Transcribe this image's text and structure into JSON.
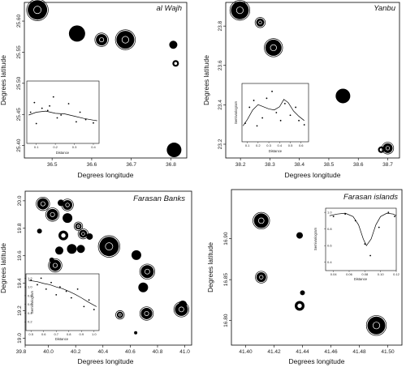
{
  "chart_data": [
    {
      "type": "scatter",
      "title": "al Wajh",
      "xlabel": "Degrees longitude",
      "ylabel": "Degrees latitude",
      "xlim": [
        36.43,
        36.84
      ],
      "ylim": [
        25.38,
        25.63
      ],
      "xticks": [
        "36.5",
        "36.6",
        "36.7",
        "36.8"
      ],
      "yticks": [
        "25.40",
        "25.45",
        "25.50",
        "25.55",
        "25.60"
      ],
      "xtick_values": [
        36.5,
        36.6,
        36.7,
        36.8
      ],
      "ytick_values": [
        25.4,
        25.45,
        25.5,
        25.55,
        25.6
      ],
      "points": [
        {
          "x": 36.463,
          "y": 25.618,
          "size": 12,
          "style": "filled-ring"
        },
        {
          "x": 36.563,
          "y": 25.58,
          "size": 10,
          "style": "filled"
        },
        {
          "x": 36.625,
          "y": 25.57,
          "size": 7,
          "style": "filled-ring"
        },
        {
          "x": 36.685,
          "y": 25.57,
          "size": 11,
          "style": "filled-ring"
        },
        {
          "x": 36.806,
          "y": 25.562,
          "size": 5,
          "style": "filled"
        },
        {
          "x": 36.812,
          "y": 25.532,
          "size": 4,
          "style": "ring"
        },
        {
          "x": 36.808,
          "y": 25.393,
          "size": 9,
          "style": "filled"
        }
      ],
      "inset": {
        "xlabel": "Distance",
        "ylabel": "",
        "xlim": [
          0.05,
          0.43
        ],
        "ylim": [
          0,
          1.1
        ],
        "xticks": [
          "0.1",
          "0.2",
          "0.3",
          "0.4"
        ],
        "xtick_values": [
          0.1,
          0.2,
          0.3,
          0.4
        ],
        "points": [
          [
            0.07,
            0.55
          ],
          [
            0.09,
            0.72
          ],
          [
            0.1,
            0.35
          ],
          [
            0.13,
            0.62
          ],
          [
            0.16,
            0.58
          ],
          [
            0.17,
            0.66
          ],
          [
            0.19,
            0.82
          ],
          [
            0.21,
            0.45
          ],
          [
            0.23,
            0.5
          ],
          [
            0.27,
            0.7
          ],
          [
            0.31,
            0.38
          ],
          [
            0.33,
            0.55
          ],
          [
            0.36,
            0.42
          ],
          [
            0.4,
            0.36
          ]
        ],
        "line": [
          [
            0.06,
            0.5
          ],
          [
            0.1,
            0.55
          ],
          [
            0.15,
            0.57
          ],
          [
            0.2,
            0.53
          ],
          [
            0.25,
            0.52
          ],
          [
            0.3,
            0.48
          ],
          [
            0.35,
            0.44
          ],
          [
            0.4,
            0.41
          ],
          [
            0.42,
            0.4
          ]
        ]
      }
    },
    {
      "type": "scatter",
      "title": "Yanbu",
      "xlabel": "Degrees longitude",
      "ylabel": "Degrees latitude",
      "xlim": [
        38.15,
        38.74
      ],
      "ylim": [
        23.13,
        23.92
      ],
      "xticks": [
        "38.2",
        "38.3",
        "38.4",
        "38.5",
        "38.6",
        "38.7"
      ],
      "yticks": [
        "23.2",
        "23.4",
        "23.6",
        "23.8"
      ],
      "xtick_values": [
        38.2,
        38.3,
        38.4,
        38.5,
        38.6,
        38.7
      ],
      "ytick_values": [
        23.2,
        23.4,
        23.6,
        23.8
      ],
      "points": [
        {
          "x": 38.198,
          "y": 23.88,
          "size": 11,
          "style": "filled-ring"
        },
        {
          "x": 38.267,
          "y": 23.818,
          "size": 5,
          "style": "filled-ring"
        },
        {
          "x": 38.312,
          "y": 23.69,
          "size": 10,
          "style": "filled-ring"
        },
        {
          "x": 38.548,
          "y": 23.445,
          "size": 9,
          "style": "filled"
        },
        {
          "x": 38.678,
          "y": 23.172,
          "size": 4,
          "style": "ring"
        },
        {
          "x": 38.7,
          "y": 23.18,
          "size": 6,
          "style": "filled-ring"
        }
      ],
      "inset": {
        "xlabel": "Distance",
        "ylabel": "Semivariogram",
        "xlim": [
          0.05,
          0.67
        ],
        "ylim": [
          0,
          1.1
        ],
        "xticks": [
          "0.1",
          "0.2",
          "0.3",
          "0.4",
          "0.5",
          "0.6"
        ],
        "xtick_values": [
          0.1,
          0.2,
          0.3,
          0.4,
          0.5,
          0.6
        ],
        "points": [
          [
            0.08,
            0.35
          ],
          [
            0.12,
            0.65
          ],
          [
            0.16,
            0.78
          ],
          [
            0.19,
            0.3
          ],
          [
            0.24,
            0.45
          ],
          [
            0.28,
            0.82
          ],
          [
            0.33,
            0.95
          ],
          [
            0.37,
            0.55
          ],
          [
            0.41,
            0.4
          ],
          [
            0.45,
            0.72
          ],
          [
            0.5,
            0.5
          ],
          [
            0.55,
            0.65
          ],
          [
            0.58,
            0.4
          ],
          [
            0.63,
            0.32
          ]
        ],
        "line": [
          [
            0.06,
            0.3
          ],
          [
            0.1,
            0.42
          ],
          [
            0.15,
            0.6
          ],
          [
            0.2,
            0.7
          ],
          [
            0.25,
            0.66
          ],
          [
            0.3,
            0.62
          ],
          [
            0.35,
            0.6
          ],
          [
            0.4,
            0.66
          ],
          [
            0.44,
            0.8
          ],
          [
            0.48,
            0.74
          ],
          [
            0.53,
            0.58
          ],
          [
            0.58,
            0.48
          ],
          [
            0.63,
            0.4
          ]
        ]
      }
    },
    {
      "type": "scatter",
      "title": "Farasan Banks",
      "xlabel": "Degrees longitude",
      "ylabel": "Degrees latitude",
      "xlim": [
        39.83,
        41.05
      ],
      "ylim": [
        18.95,
        20.07
      ],
      "xticks": [
        "39.8",
        "40.0",
        "40.2",
        "40.4",
        "40.6",
        "40.8",
        "41.0"
      ],
      "yticks": [
        "19.0",
        "19.2",
        "19.4",
        "19.6",
        "19.8",
        "20.0"
      ],
      "xtick_values": [
        39.8,
        40.0,
        40.2,
        40.4,
        40.6,
        40.8,
        41.0
      ],
      "ytick_values": [
        19.0,
        19.2,
        19.4,
        19.6,
        19.8,
        20.0
      ],
      "points": [
        {
          "x": 39.96,
          "y": 19.978,
          "size": 7,
          "style": "filled-ring"
        },
        {
          "x": 40.092,
          "y": 19.985,
          "size": 4,
          "style": "filled"
        },
        {
          "x": 40.14,
          "y": 19.97,
          "size": 6,
          "style": "filled-ring"
        },
        {
          "x": 40.03,
          "y": 19.9,
          "size": 7,
          "style": "filled-ring"
        },
        {
          "x": 40.14,
          "y": 19.875,
          "size": 6,
          "style": "filled"
        },
        {
          "x": 40.22,
          "y": 19.815,
          "size": 4,
          "style": "filled-ring"
        },
        {
          "x": 40.255,
          "y": 19.76,
          "size": 5,
          "style": "filled-ring"
        },
        {
          "x": 39.935,
          "y": 19.78,
          "size": 3,
          "style": "filled"
        },
        {
          "x": 40.11,
          "y": 19.748,
          "size": 6,
          "style": "ring"
        },
        {
          "x": 40.302,
          "y": 19.74,
          "size": 4,
          "style": "filled"
        },
        {
          "x": 40.08,
          "y": 19.638,
          "size": 5,
          "style": "filled"
        },
        {
          "x": 40.172,
          "y": 19.65,
          "size": 6,
          "style": "filled"
        },
        {
          "x": 40.238,
          "y": 19.65,
          "size": 5,
          "style": "filled"
        },
        {
          "x": 40.445,
          "y": 19.668,
          "size": 12,
          "style": "filled-ring"
        },
        {
          "x": 40.025,
          "y": 19.57,
          "size": 3,
          "style": "filled"
        },
        {
          "x": 40.05,
          "y": 19.53,
          "size": 7,
          "style": "filled-ring"
        },
        {
          "x": 40.645,
          "y": 19.605,
          "size": 6,
          "style": "filled"
        },
        {
          "x": 40.725,
          "y": 19.485,
          "size": 8,
          "style": "filled-ring"
        },
        {
          "x": 40.695,
          "y": 19.37,
          "size": 6,
          "style": "filled"
        },
        {
          "x": 40.985,
          "y": 19.245,
          "size": 5,
          "style": "filled"
        },
        {
          "x": 40.975,
          "y": 19.21,
          "size": 8,
          "style": "filled-ring"
        },
        {
          "x": 40.525,
          "y": 19.17,
          "size": 4,
          "style": "filled-ring"
        },
        {
          "x": 40.72,
          "y": 19.18,
          "size": 7,
          "style": "filled-ring"
        },
        {
          "x": 40.64,
          "y": 19.04,
          "size": 2,
          "style": "filled"
        }
      ],
      "inset": {
        "xlabel": "Distance",
        "ylabel": "Semivariogram",
        "xlim": [
          0.46,
          1.04
        ],
        "ylim": [
          0,
          1.3
        ],
        "xticks": [
          "0.5",
          "0.6",
          "0.7",
          "0.8",
          "0.9",
          "1.0"
        ],
        "xtick_values": [
          0.5,
          0.6,
          0.7,
          0.8,
          0.9,
          1.0
        ],
        "yticks": [
          "1.2",
          "1.0",
          "0.8",
          "0.6",
          "0.4",
          "0.2"
        ],
        "ytick_values": [
          1.2,
          1.0,
          0.8,
          0.6,
          0.4,
          0.2
        ],
        "points": [
          [
            0.5,
            1.15
          ],
          [
            0.55,
            1.05
          ],
          [
            0.58,
            1.2
          ],
          [
            0.62,
            0.95
          ],
          [
            0.66,
            1.1
          ],
          [
            0.7,
            0.82
          ],
          [
            0.73,
            1.0
          ],
          [
            0.78,
            0.9
          ],
          [
            0.82,
            0.75
          ],
          [
            0.87,
            0.95
          ],
          [
            0.92,
            0.55
          ],
          [
            0.96,
            0.7
          ],
          [
            1.0,
            0.48
          ]
        ],
        "line": [
          [
            0.48,
            1.15
          ],
          [
            0.55,
            1.12
          ],
          [
            0.6,
            1.08
          ],
          [
            0.65,
            1.05
          ],
          [
            0.7,
            1.0
          ],
          [
            0.75,
            0.96
          ],
          [
            0.8,
            0.9
          ],
          [
            0.85,
            0.83
          ],
          [
            0.9,
            0.75
          ],
          [
            0.95,
            0.66
          ],
          [
            1.0,
            0.58
          ],
          [
            1.02,
            0.55
          ]
        ]
      }
    },
    {
      "type": "scatter",
      "title": "Farasan islands",
      "xlabel": "Degrees longitude",
      "ylabel": "Degrees latitude",
      "xlim": [
        41.39,
        41.51
      ],
      "ylim": [
        16.77,
        16.96
      ],
      "xticks": [
        "41.40",
        "41.42",
        "41.44",
        "41.46",
        "41.48",
        "41.50"
      ],
      "yticks": [
        "16.80",
        "16.85",
        "16.90"
      ],
      "xtick_values": [
        41.4,
        41.42,
        41.44,
        41.46,
        41.48,
        41.5
      ],
      "ytick_values": [
        16.8,
        16.85,
        16.9
      ],
      "points": [
        {
          "x": 41.411,
          "y": 16.922,
          "size": 9,
          "style": "filled-ring"
        },
        {
          "x": 41.411,
          "y": 16.853,
          "size": 6,
          "style": "filled-ring"
        },
        {
          "x": 41.438,
          "y": 16.904,
          "size": 4,
          "style": "filled"
        },
        {
          "x": 41.44,
          "y": 16.834,
          "size": 3,
          "style": "filled"
        },
        {
          "x": 41.438,
          "y": 16.818,
          "size": 6,
          "style": "ring"
        },
        {
          "x": 41.492,
          "y": 16.794,
          "size": 11,
          "style": "filled-ring"
        }
      ],
      "inset": {
        "xlabel": "Distance",
        "ylabel": "Semivariogram",
        "xlim": [
          0.03,
          0.12
        ],
        "ylim": [
          0.3,
          1.05
        ],
        "xticks": [
          "0.04",
          "0.06",
          "0.08",
          "0.10",
          "0.12"
        ],
        "xtick_values": [
          0.04,
          0.06,
          0.08,
          0.1,
          0.12
        ],
        "yticks": [
          "1.0",
          "0.8",
          "0.6",
          "0.4"
        ],
        "ytick_values": [
          1.0,
          0.8,
          0.6,
          0.4
        ],
        "points": [
          [
            0.04,
            0.95
          ],
          [
            0.055,
            0.98
          ],
          [
            0.068,
            0.9
          ],
          [
            0.08,
            0.62
          ],
          [
            0.087,
            0.48
          ],
          [
            0.098,
            0.82
          ],
          [
            0.11,
            1.0
          ],
          [
            0.118,
            0.95
          ]
        ],
        "line": [
          [
            0.035,
            0.96
          ],
          [
            0.045,
            0.98
          ],
          [
            0.055,
            0.99
          ],
          [
            0.065,
            0.95
          ],
          [
            0.072,
            0.85
          ],
          [
            0.078,
            0.68
          ],
          [
            0.082,
            0.6
          ],
          [
            0.088,
            0.68
          ],
          [
            0.094,
            0.85
          ],
          [
            0.1,
            0.95
          ],
          [
            0.108,
            0.99
          ],
          [
            0.116,
            0.98
          ],
          [
            0.12,
            0.96
          ]
        ]
      }
    }
  ]
}
